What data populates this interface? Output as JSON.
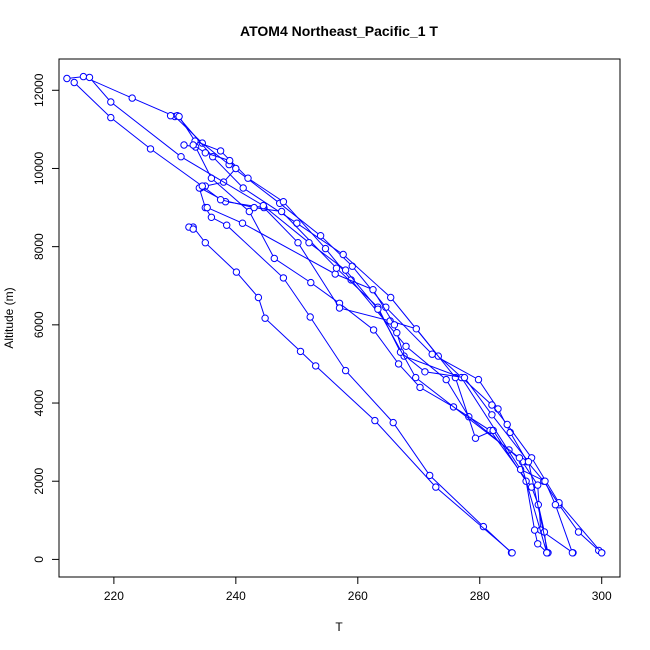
{
  "chart_data": {
    "type": "line",
    "title": "ATOM4 Northeast_Pacific_1 T",
    "xlabel": "T",
    "ylabel": "Altitude (m)",
    "xlim": [
      211,
      303
    ],
    "ylim": [
      -450,
      12800
    ],
    "x_ticks": [
      220,
      240,
      260,
      280,
      300
    ],
    "y_ticks": [
      0,
      2000,
      4000,
      6000,
      8000,
      10000,
      12000
    ],
    "grid": false,
    "legend": "none",
    "colors": {
      "series": "#0000ff",
      "axes": "#000000"
    },
    "series": [
      {
        "values": [
          [
            300.0,
            170
          ],
          [
            299.5,
            230
          ],
          [
            296.2,
            700
          ],
          [
            293.0,
            1400
          ],
          [
            290.5,
            2000
          ],
          [
            287.8,
            2500
          ],
          [
            285.0,
            3250
          ],
          [
            283.0,
            3850
          ],
          [
            279.8,
            4600
          ],
          [
            272.2,
            5250
          ],
          [
            264.6,
            6450
          ],
          [
            259.1,
            7500
          ],
          [
            253.9,
            8280
          ],
          [
            247.2,
            9110
          ],
          [
            238.9,
            10100
          ],
          [
            234.5,
            10650
          ],
          [
            230.0,
            11330
          ],
          [
            223.0,
            11800
          ],
          [
            215.0,
            12350
          ],
          [
            212.3,
            12300
          ]
        ]
      },
      {
        "values": [
          [
            300.0,
            170
          ],
          [
            293.0,
            1450
          ],
          [
            288.5,
            2600
          ],
          [
            284.5,
            3450
          ],
          [
            282.0,
            3950
          ],
          [
            273.2,
            5200
          ],
          [
            265.4,
            6700
          ],
          [
            257.6,
            7800
          ],
          [
            250.0,
            8600
          ],
          [
            241.2,
            9500
          ],
          [
            236.2,
            10300
          ],
          [
            230.4,
            11350
          ]
        ]
      },
      {
        "values": [
          [
            295.3,
            170
          ],
          [
            290.0,
            750
          ],
          [
            289.5,
            1900
          ],
          [
            287.0,
            2500
          ],
          [
            284.8,
            2800
          ],
          [
            278.2,
            3650
          ],
          [
            274.5,
            4600
          ],
          [
            267.9,
            5450
          ],
          [
            258.9,
            7150
          ],
          [
            254.7,
            7950
          ],
          [
            247.8,
            9150
          ],
          [
            242.0,
            9750
          ],
          [
            237.5,
            10450
          ],
          [
            233.3,
            10700
          ],
          [
            230.7,
            11330
          ],
          [
            229.3,
            11350
          ]
        ]
      },
      {
        "values": [
          [
            291.0,
            170
          ],
          [
            290.6,
            700
          ],
          [
            289.6,
            1400
          ],
          [
            288.5,
            1850
          ],
          [
            281.7,
            3300
          ],
          [
            275.7,
            3900
          ],
          [
            270.2,
            4400
          ],
          [
            266.7,
            5000
          ],
          [
            262.6,
            5870
          ],
          [
            257.0,
            6550
          ],
          [
            252.3,
            7080
          ],
          [
            246.3,
            7700
          ],
          [
            242.2,
            8900
          ],
          [
            236.0,
            9750
          ],
          [
            233.4,
            10550
          ],
          [
            231.5,
            10600
          ]
        ]
      },
      {
        "values": [
          [
            291.1,
            170
          ],
          [
            289.5,
            400
          ],
          [
            289.0,
            750
          ],
          [
            287.6,
            2000
          ],
          [
            282.2,
            3300
          ],
          [
            279.3,
            3100
          ],
          [
            276.0,
            4650
          ],
          [
            269.6,
            5900
          ],
          [
            265.3,
            6100
          ],
          [
            257.0,
            6430
          ],
          [
            250.2,
            8100
          ],
          [
            244.6,
            9000
          ],
          [
            238.3,
            9150
          ],
          [
            234.2,
            9500
          ]
        ]
      },
      {
        "values": [
          [
            285.2,
            170
          ],
          [
            280.6,
            840
          ],
          [
            271.8,
            2150
          ],
          [
            265.8,
            3500
          ],
          [
            258.0,
            4830
          ],
          [
            252.2,
            6200
          ],
          [
            247.8,
            7200
          ],
          [
            238.5,
            8550
          ],
          [
            236.0,
            8750
          ],
          [
            235.0,
            9000
          ],
          [
            234.0,
            9500
          ],
          [
            235.0,
            9550
          ],
          [
            238.0,
            9650
          ],
          [
            240.0,
            10000
          ],
          [
            239.0,
            10200
          ],
          [
            235.0,
            10400
          ],
          [
            233.0,
            10600
          ]
        ]
      },
      {
        "values": [
          [
            285.3,
            170
          ],
          [
            272.8,
            1850
          ],
          [
            262.8,
            3550
          ],
          [
            253.1,
            4950
          ],
          [
            250.6,
            5320
          ],
          [
            244.8,
            6170
          ],
          [
            243.7,
            6700
          ],
          [
            240.1,
            7350
          ],
          [
            235.0,
            8100
          ],
          [
            233.0,
            8500
          ],
          [
            232.3,
            8500
          ],
          [
            233.0,
            8450
          ]
        ]
      },
      {
        "values": [
          [
            295.2,
            170
          ],
          [
            292.4,
            1400
          ],
          [
            290.7,
            2000
          ],
          [
            286.7,
            2300
          ],
          [
            277.0,
            4650
          ],
          [
            267.6,
            5200
          ],
          [
            266.4,
            5800
          ],
          [
            266.0,
            6000
          ],
          [
            262.5,
            6900
          ],
          [
            256.3,
            7300
          ],
          [
            241.1,
            8600
          ],
          [
            235.3,
            9000
          ]
        ]
      },
      {
        "values": [
          [
            291.2,
            170
          ],
          [
            288.0,
            2500
          ],
          [
            282.0,
            3700
          ],
          [
            277.5,
            4650
          ],
          [
            271.0,
            4800
          ],
          [
            267.0,
            5300
          ],
          [
            263.3,
            6450
          ],
          [
            256.5,
            7450
          ],
          [
            247.5,
            8900
          ],
          [
            243.0,
            9000
          ],
          [
            237.5,
            9200
          ],
          [
            234.5,
            9550
          ],
          [
            226.0,
            10500
          ],
          [
            219.5,
            11300
          ],
          [
            213.5,
            12200
          ]
        ]
      },
      {
        "values": [
          [
            291.0,
            170
          ],
          [
            286.5,
            2600
          ],
          [
            269.5,
            4650
          ],
          [
            263.3,
            6400
          ],
          [
            258.0,
            7400
          ],
          [
            252.0,
            8100
          ],
          [
            244.5,
            9050
          ],
          [
            231.0,
            10300
          ],
          [
            219.5,
            11700
          ],
          [
            216.0,
            12330
          ]
        ]
      }
    ]
  }
}
